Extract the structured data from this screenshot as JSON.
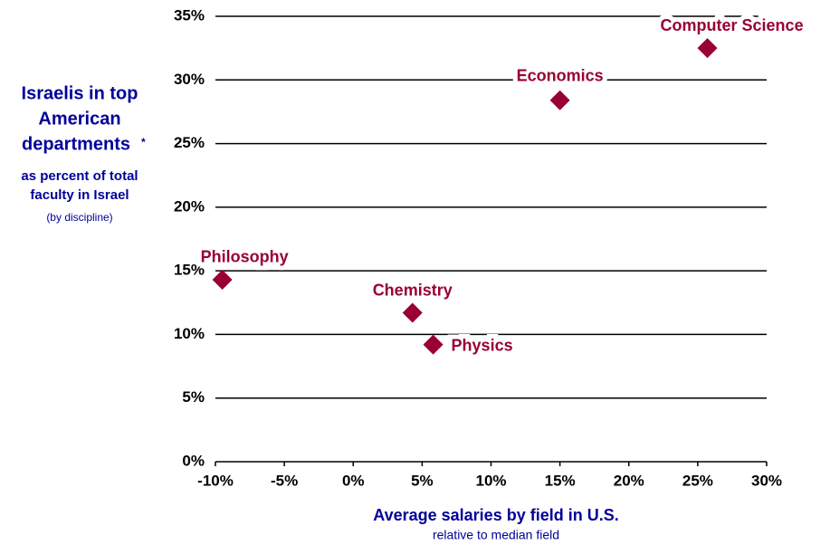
{
  "chart_data": {
    "type": "scatter",
    "ylabel_title": [
      "Israelis in top",
      "American",
      "departments"
    ],
    "ylabel_mark": "*",
    "ylabel_sub": [
      "as percent of total",
      "faculty in Israel"
    ],
    "ylabel_note": "(by discipline)",
    "xlabel": "Average salaries by field in U.S.",
    "xlabel_sub": "relative to median field",
    "series": [
      {
        "color": "#990033",
        "labels": [
          "Computer  Science",
          "Economics",
          "Philosophy",
          "Chemistry",
          "Physics"
        ],
        "x": [
          25.7,
          15.0,
          -9.5,
          4.3,
          5.8
        ],
        "values": [
          32.5,
          28.4,
          14.3,
          11.7,
          9.2
        ]
      }
    ],
    "xlim": [
      -10,
      30
    ],
    "xticks": [
      {
        "value": -10,
        "label": "-10%"
      },
      {
        "value": -5,
        "label": "-5%"
      },
      {
        "value": 0,
        "label": "0%"
      },
      {
        "value": 5,
        "label": "5%"
      },
      {
        "value": 10,
        "label": "10%"
      },
      {
        "value": 15,
        "label": "15%"
      },
      {
        "value": 20,
        "label": "20%"
      },
      {
        "value": 25,
        "label": "25%"
      },
      {
        "value": 30,
        "label": "30%"
      }
    ],
    "ylim": [
      0,
      35
    ],
    "yticks": [
      {
        "value": 0,
        "label": "0%"
      },
      {
        "value": 5,
        "label": "5%"
      },
      {
        "value": 10,
        "label": "10%"
      },
      {
        "value": 15,
        "label": "15%"
      },
      {
        "value": 20,
        "label": "20%"
      },
      {
        "value": 25,
        "label": "25%"
      },
      {
        "value": 30,
        "label": "30%"
      },
      {
        "value": 35,
        "label": "35%"
      }
    ],
    "grid": true
  }
}
